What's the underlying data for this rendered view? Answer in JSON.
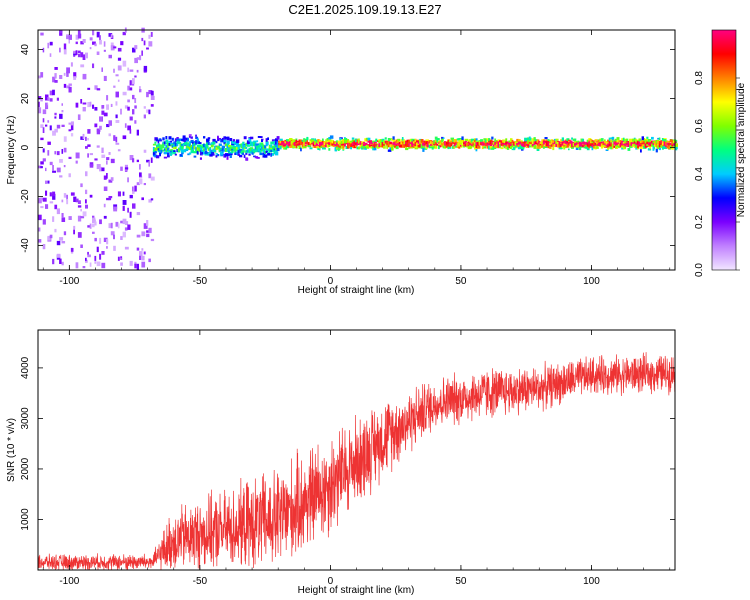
{
  "title": "C2E1.2025.109.19.13.E27",
  "chart_data": [
    {
      "type": "heatmap",
      "xlabel": "Height of straight line (km)",
      "ylabel": "Frequency (Hz)",
      "xlim": [
        -112,
        132
      ],
      "ylim": [
        -50,
        48
      ],
      "x_ticks": [
        -100,
        -50,
        0,
        50,
        100
      ],
      "y_ticks": [
        -40,
        -20,
        0,
        20,
        40
      ],
      "colorbar": {
        "label": "Normalized spectral amplitude",
        "range": [
          0,
          1
        ],
        "ticks": [
          "0.0",
          "0.2",
          "0.4",
          "0.6",
          "0.8"
        ],
        "stops": [
          "#f2e6ff",
          "#c080ff",
          "#7b00ff",
          "#0000ff",
          "#00ccff",
          "#00ff80",
          "#80ff00",
          "#ffff00",
          "#ff8000",
          "#ff0000",
          "#ff0080"
        ]
      },
      "features": [
        {
          "x_range": [
            -112,
            -68
          ],
          "center_hz": 0,
          "spread_hz": 49,
          "amplitude": 0.12
        },
        {
          "x_range": [
            -68,
            -20
          ],
          "center_hz": 0,
          "spread_hz": 5,
          "amplitude": 0.45
        },
        {
          "x_range": [
            -20,
            132
          ],
          "center_hz": 1.5,
          "spread_hz": 2.5,
          "amplitude": 0.85
        }
      ]
    },
    {
      "type": "line",
      "xlabel": "Height of straight line (km)",
      "ylabel": "SNR (10 * v/v)",
      "xlim": [
        -112,
        132
      ],
      "ylim": [
        0,
        4750
      ],
      "x_ticks": [
        -100,
        -50,
        0,
        50,
        100
      ],
      "y_ticks": [
        1000,
        2000,
        3000,
        4000
      ],
      "color": "#ee3333",
      "trend": [
        {
          "x": -112,
          "mean": 150,
          "noise": 120
        },
        {
          "x": -68,
          "mean": 160,
          "noise": 130
        },
        {
          "x": -60,
          "mean": 600,
          "noise": 500
        },
        {
          "x": -40,
          "mean": 800,
          "noise": 600
        },
        {
          "x": -20,
          "mean": 1000,
          "noise": 800
        },
        {
          "x": 0,
          "mean": 1700,
          "noise": 800
        },
        {
          "x": 20,
          "mean": 2600,
          "noise": 600
        },
        {
          "x": 40,
          "mean": 3300,
          "noise": 400
        },
        {
          "x": 60,
          "mean": 3500,
          "noise": 400
        },
        {
          "x": 80,
          "mean": 3600,
          "noise": 350
        },
        {
          "x": 100,
          "mean": 3850,
          "noise": 300
        },
        {
          "x": 132,
          "mean": 3900,
          "noise": 300
        }
      ]
    }
  ]
}
